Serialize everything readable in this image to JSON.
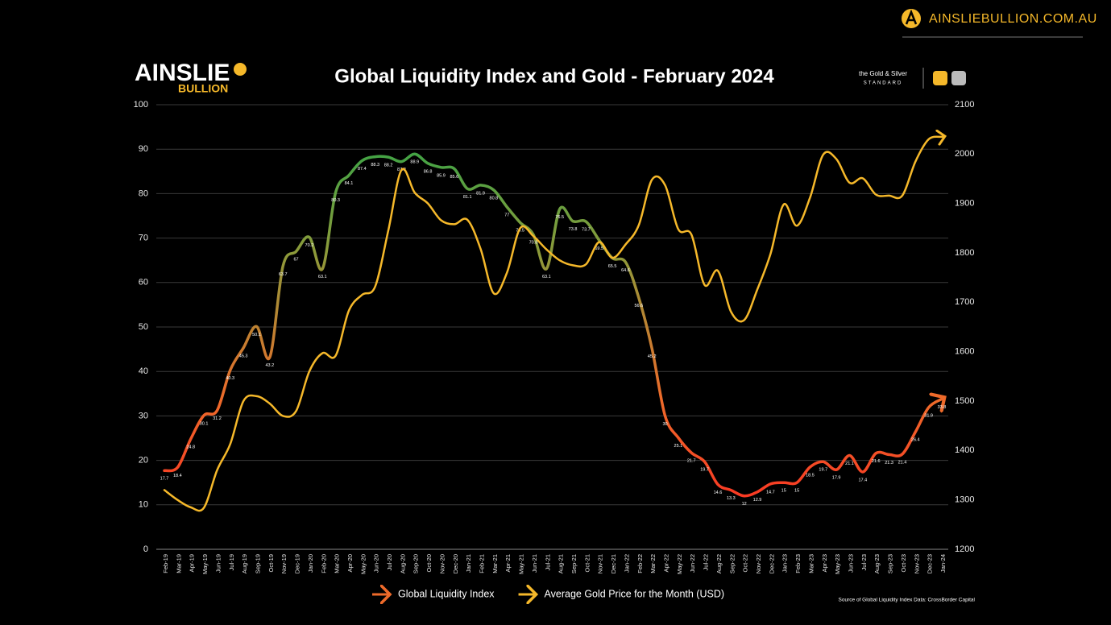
{
  "chart_data": {
    "type": "line",
    "title": "Global Liquidity Index and Gold - February 2024",
    "website": "AINSLIEBULLION.COM.AU",
    "logo_text": "AINSLIE",
    "logo_subtext": "BULLION",
    "partner": [
      "the Gold & Silver",
      "STANDARD"
    ],
    "source": "Source of Global Liquidity Index Data: CrossBorder Capital",
    "categories": [
      "Feb-19",
      "Mar-19",
      "Apr-19",
      "May-19",
      "Jun-19",
      "Jul-19",
      "Aug-19",
      "Sep-19",
      "Oct-19",
      "Nov-19",
      "Dec-19",
      "Jan-20",
      "Feb-20",
      "Mar-20",
      "Apr-20",
      "May-20",
      "Jun-20",
      "Jul-20",
      "Aug-20",
      "Sep-20",
      "Oct-20",
      "Nov-20",
      "Dec-20",
      "Jan-21",
      "Feb-21",
      "Mar-21",
      "Apr-21",
      "May-21",
      "Jun-21",
      "Jul-21",
      "Aug-21",
      "Sep-21",
      "Oct-21",
      "Nov-21",
      "Dec-21",
      "Jan-22",
      "Feb-22",
      "Mar-22",
      "Apr-22",
      "May-22",
      "Jun-22",
      "Jul-22",
      "Aug-22",
      "Sep-22",
      "Oct-22",
      "Nov-22",
      "Dec-22",
      "Jan-23",
      "Feb-23",
      "Mar-23",
      "Apr-23",
      "May-23",
      "Jun-23",
      "Jul-23",
      "Aug-23",
      "Sep-23",
      "Oct-23",
      "Nov-23",
      "Dec-23",
      "Jan-24"
    ],
    "series": [
      {
        "name": "Global Liquidity Index",
        "gradient": [
          "#ff1f1f",
          "#ee6a2a",
          "#8c9a3a",
          "#1fa84a"
        ],
        "values": [
          17.7,
          18.4,
          24.8,
          30.1,
          31.2,
          40.3,
          45.3,
          50.1,
          43.2,
          63.7,
          67,
          70.2,
          63.1,
          80.3,
          84.1,
          87.4,
          88.3,
          88.2,
          87.2,
          88.9,
          86.8,
          85.9,
          85.6,
          81.1,
          81.9,
          80.8,
          77,
          73.5,
          70.8,
          63.1,
          76.5,
          73.8,
          73.7,
          69.5,
          65.5,
          64.6,
          56.6,
          45.2,
          30,
          25.1,
          21.7,
          19.7,
          14.6,
          13.3,
          12,
          12.9,
          14.7,
          15,
          15,
          18.5,
          19.7,
          17.9,
          21.1,
          17.4,
          21.6,
          21.3,
          21.4,
          26.4,
          31.9,
          33.8
        ]
      },
      {
        "name": "Average Gold Price for the Month (USD)",
        "color": "#f5b82a",
        "axis": "y2",
        "values": [
          1320,
          1300,
          1285,
          1284,
          1360,
          1413,
          1500,
          1510,
          1495,
          1470,
          1480,
          1560,
          1597,
          1592,
          1683,
          1715,
          1732,
          1846,
          1968,
          1922,
          1900,
          1866,
          1858,
          1867,
          1808,
          1718,
          1760,
          1850,
          1834,
          1807,
          1785,
          1775,
          1777,
          1822,
          1790,
          1817,
          1856,
          1948,
          1937,
          1848,
          1837,
          1735,
          1764,
          1681,
          1664,
          1726,
          1798,
          1898,
          1855,
          1912,
          1999,
          1990,
          1942,
          1951,
          1918,
          1916,
          1916,
          1985,
          2030,
          2035
        ]
      }
    ],
    "ylim": [
      0,
      100
    ],
    "yticks": [
      0,
      10,
      20,
      30,
      40,
      50,
      60,
      70,
      80,
      90,
      100
    ],
    "y2lim": [
      1200,
      2100
    ],
    "y2ticks": [
      1200,
      1300,
      1400,
      1500,
      1600,
      1700,
      1800,
      1900,
      2000,
      2100
    ],
    "grid": true
  }
}
